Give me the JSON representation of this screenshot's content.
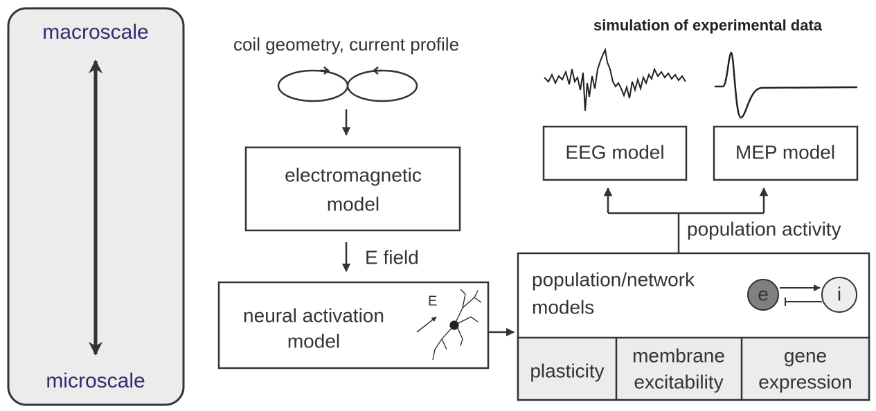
{
  "scale": {
    "top": "macroscale",
    "bottom": "microscale"
  },
  "input": {
    "label": "coil geometry, current profile"
  },
  "electromagnetic_model": {
    "lines": [
      "electromagnetic",
      "model"
    ]
  },
  "e_field": {
    "label": "E field"
  },
  "neural_activation_model": {
    "lines": [
      "neural activation",
      "model"
    ],
    "field_label": "E"
  },
  "simulation": {
    "title": "simulation of experimental data",
    "eeg": "EEG model",
    "mep": "MEP model"
  },
  "population_activity": {
    "label": "population activity"
  },
  "population_model": {
    "lines": [
      "population/network",
      "models"
    ],
    "excitatory": "e",
    "inhibitory": "i",
    "factors": [
      {
        "lines": [
          "plasticity"
        ]
      },
      {
        "lines": [
          "membrane",
          "excitability"
        ]
      },
      {
        "lines": [
          "gene",
          "expression"
        ]
      }
    ]
  }
}
